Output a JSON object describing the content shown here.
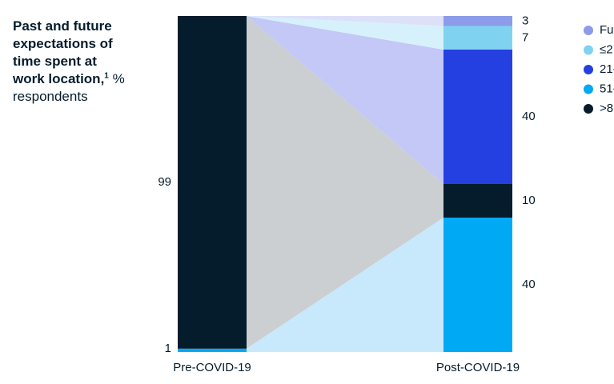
{
  "chart_data": {
    "type": "stacked-flow",
    "title": "Past and future expectations of time spent at work location,",
    "title_footnote": "1",
    "unit": "% respondents",
    "categories": [
      "Pre-COVID-19",
      "Post-COVID-19"
    ],
    "ylim": [
      0,
      100
    ],
    "series": [
      {
        "name": "51-",
        "color": "#00a9f4",
        "flow_color": "#c8e9fb",
        "values": [
          1,
          40
        ]
      },
      {
        "name": ">8",
        "color": "#051c2c",
        "flow_color": "#cbcfd2",
        "values": [
          99,
          10
        ]
      },
      {
        "name": "21-",
        "color": "#2540e0",
        "flow_color": "#c3c8f6",
        "values": [
          0,
          40
        ]
      },
      {
        "name": "≤2",
        "color": "#7fd3f0",
        "flow_color": "#d6f1fb",
        "values": [
          0,
          7
        ]
      },
      {
        "name": "Fu",
        "color": "#8c9cea",
        "flow_color": "#dde1f8",
        "values": [
          0,
          3
        ]
      }
    ],
    "legend_order": [
      4,
      3,
      2,
      0,
      1
    ]
  }
}
